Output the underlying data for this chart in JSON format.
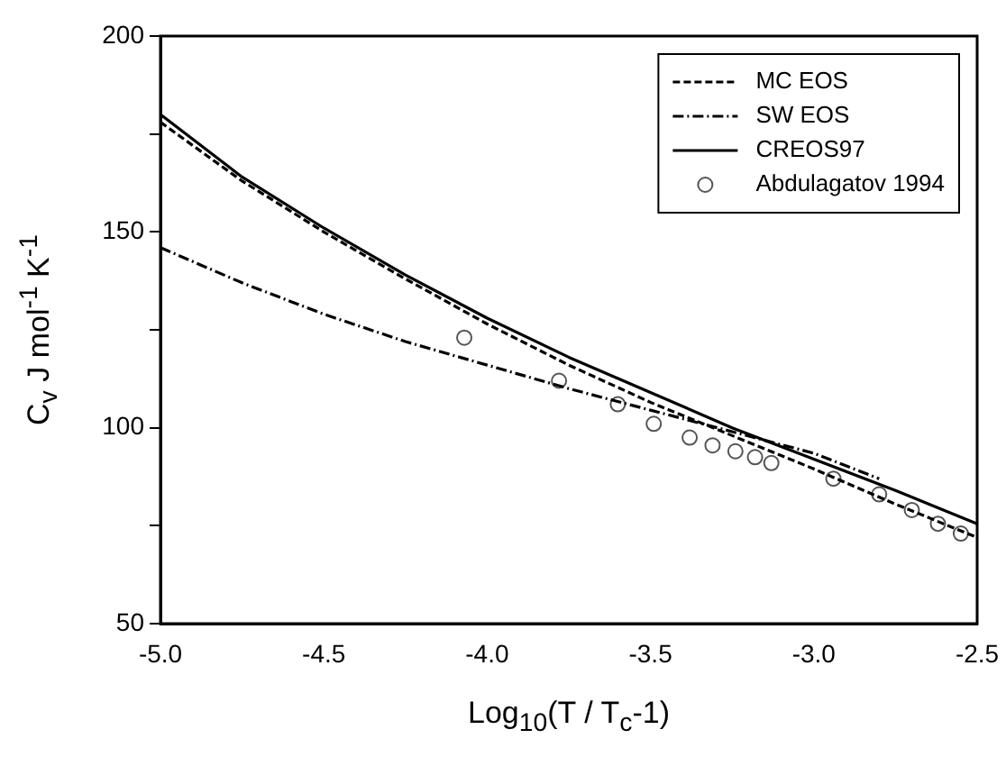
{
  "chart_data": {
    "type": "line",
    "xlabel": "Log$_{10}$(T / T$_{c}$-1)",
    "ylabel": "C$_{v}$ J mol$^{-1}$ K$^{-1}$",
    "xlim": [
      -5.0,
      -2.5
    ],
    "xticks": [
      {
        "value": -5,
        "label": "-5.0"
      },
      {
        "value": -4.5,
        "label": "-4.5"
      },
      {
        "value": -4,
        "label": "-4.0"
      },
      {
        "value": -3.5,
        "label": "-3.5"
      },
      {
        "value": -3,
        "label": "-3.0"
      },
      {
        "value": -2.5,
        "label": "-2.5"
      }
    ],
    "ylim": [
      50,
      200
    ],
    "yticks": [
      50,
      {
        "value": 75,
        "label": null
      },
      100,
      {
        "value": 125,
        "label": null
      },
      150,
      {
        "value": 175,
        "label": null
      },
      200
    ],
    "grid": false,
    "legend": "top right",
    "series": [
      {
        "name": "MC EOS",
        "type": "line",
        "color": "#000000",
        "line_style": "dashed",
        "marker": "none",
        "x": [
          -5,
          -4.75,
          -4.5,
          -4.25,
          -4,
          -3.75,
          -3.5,
          -3.25,
          -3,
          -2.75,
          -2.5
        ],
        "values": [
          178,
          163,
          150,
          138,
          126.5,
          116,
          106.5,
          98,
          89.5,
          80.5,
          72
        ]
      },
      {
        "name": "SW EOS",
        "type": "line",
        "color": "#000000",
        "line_style": "dashdot",
        "marker": "none",
        "x": [
          -5,
          -4.75,
          -4.5,
          -4.25,
          -4,
          -3.75,
          -3.5,
          -3.25,
          -3,
          -2.8
        ],
        "values": [
          146,
          137,
          129,
          122,
          116,
          110,
          104.5,
          99,
          93.5,
          87
        ]
      },
      {
        "name": "CREOS97",
        "type": "line",
        "color": "#000000",
        "line_style": "solid",
        "marker": "none",
        "x": [
          -5,
          -4.75,
          -4.5,
          -4.25,
          -4,
          -3.75,
          -3.5,
          -3.25,
          -3,
          -2.75,
          -2.5
        ],
        "values": [
          180,
          164,
          151,
          139,
          128,
          118,
          109,
          100,
          92,
          84,
          75.5
        ]
      },
      {
        "name": "Abdulagatov 1994",
        "type": "scatter",
        "color": "#555555",
        "marker": "circle",
        "x": [
          -4.07,
          -3.78,
          -3.6,
          -3.49,
          -3.38,
          -3.31,
          -3.24,
          -3.18,
          -3.13,
          -2.94,
          -2.8,
          -2.7,
          -2.62,
          -2.55
        ],
        "values": [
          123,
          112,
          106,
          101,
          97.5,
          95.5,
          94,
          92.5,
          91,
          87,
          83,
          79,
          75.5,
          73
        ]
      }
    ]
  }
}
